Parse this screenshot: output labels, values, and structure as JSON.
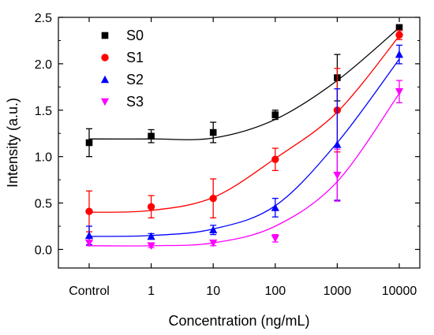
{
  "chart_data": {
    "type": "scatter",
    "title": "",
    "xlabel": "Concentration (ng/mL)",
    "ylabel": "Intensity (a.u.)",
    "categories": [
      "Control",
      "1",
      "10",
      "100",
      "1000",
      "10000"
    ],
    "ylim": [
      -0.2,
      2.5
    ],
    "yticks": [
      0.0,
      0.5,
      1.0,
      1.5,
      2.0,
      2.5
    ],
    "ytick_labels": [
      "0.0",
      "0.5",
      "1.0",
      "1.5",
      "2.0",
      "2.5"
    ],
    "grid": false,
    "legend_position": "top-left",
    "series": [
      {
        "name": "S0",
        "color": "#000000",
        "marker": "square",
        "values": [
          1.15,
          1.22,
          1.26,
          1.45,
          1.85,
          2.39
        ],
        "errors": [
          0.15,
          0.07,
          0.11,
          0.05,
          0.25,
          0.03
        ],
        "fit": [
          1.19,
          1.19,
          1.2,
          1.4,
          1.82,
          2.39
        ]
      },
      {
        "name": "S1",
        "color": "#ff0000",
        "marker": "circle",
        "values": [
          0.41,
          0.46,
          0.55,
          0.97,
          1.5,
          2.31
        ],
        "errors": [
          0.22,
          0.12,
          0.21,
          0.12,
          0.45,
          0.05
        ],
        "fit": [
          0.4,
          0.42,
          0.56,
          0.98,
          1.48,
          2.3
        ]
      },
      {
        "name": "S2",
        "color": "#0000ff",
        "marker": "triangle-up",
        "values": [
          0.15,
          0.14,
          0.21,
          0.45,
          1.13,
          2.1
        ],
        "errors": [
          0.1,
          0.03,
          0.05,
          0.1,
          0.6,
          0.1
        ],
        "fit": [
          0.14,
          0.15,
          0.22,
          0.47,
          1.15,
          2.05
        ]
      },
      {
        "name": "S3",
        "color": "#ff00ff",
        "marker": "triangle-down",
        "values": [
          0.07,
          0.04,
          0.07,
          0.12,
          0.8,
          1.7
        ],
        "errors": [
          0.03,
          0.02,
          0.03,
          0.04,
          0.28,
          0.12
        ],
        "fit": [
          0.04,
          0.04,
          0.07,
          0.25,
          0.73,
          1.68
        ]
      }
    ]
  }
}
